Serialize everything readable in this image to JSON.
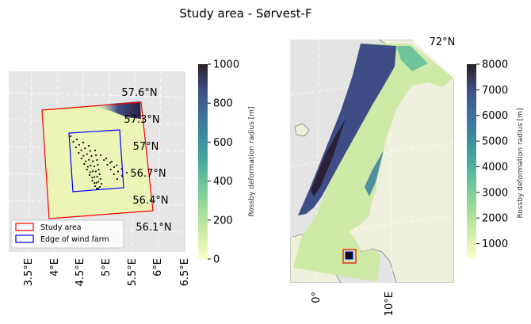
{
  "figure": {
    "title": "Study area - Sørvest-F"
  },
  "chart_data": [
    {
      "type": "heatmap",
      "panel": "left-map",
      "title": "",
      "x_ticks": [
        "3.5°E",
        "4°E",
        "4.5°E",
        "5°E",
        "5.5°E",
        "6°E",
        "6.5°E"
      ],
      "lat_labels": [
        "57.6°N",
        "57.3°N",
        "57°N",
        "56.7°N",
        "56.4°N",
        "56.1°N"
      ],
      "legend": [
        {
          "label": "Study area",
          "color": "#ff0000"
        },
        {
          "label": "Edge of wind farm",
          "color": "#0000ff"
        }
      ],
      "colorbar": {
        "label": "Rossby deformation radius [m]",
        "ticks": [
          "0",
          "200",
          "400",
          "600",
          "800",
          "1000"
        ],
        "range": [
          0,
          1000
        ],
        "colormap": "deep"
      }
    },
    {
      "type": "heatmap",
      "panel": "right-map",
      "title": "",
      "x_ticks": [
        "0°",
        "10°E"
      ],
      "lat_labels": [
        "72°N"
      ],
      "colorbar": {
        "label": "Rossby deformation radius [m]",
        "ticks": [
          "1000",
          "2000",
          "3000",
          "4000",
          "5000",
          "6000",
          "7000",
          "8000"
        ],
        "range": [
          400,
          8000
        ],
        "colormap": "deep"
      }
    }
  ],
  "colors": {
    "map_bg": "#e6e6e6",
    "land": "#efefde",
    "study_area": "#ff0000",
    "wind_farm_edge": "#0000ff"
  }
}
